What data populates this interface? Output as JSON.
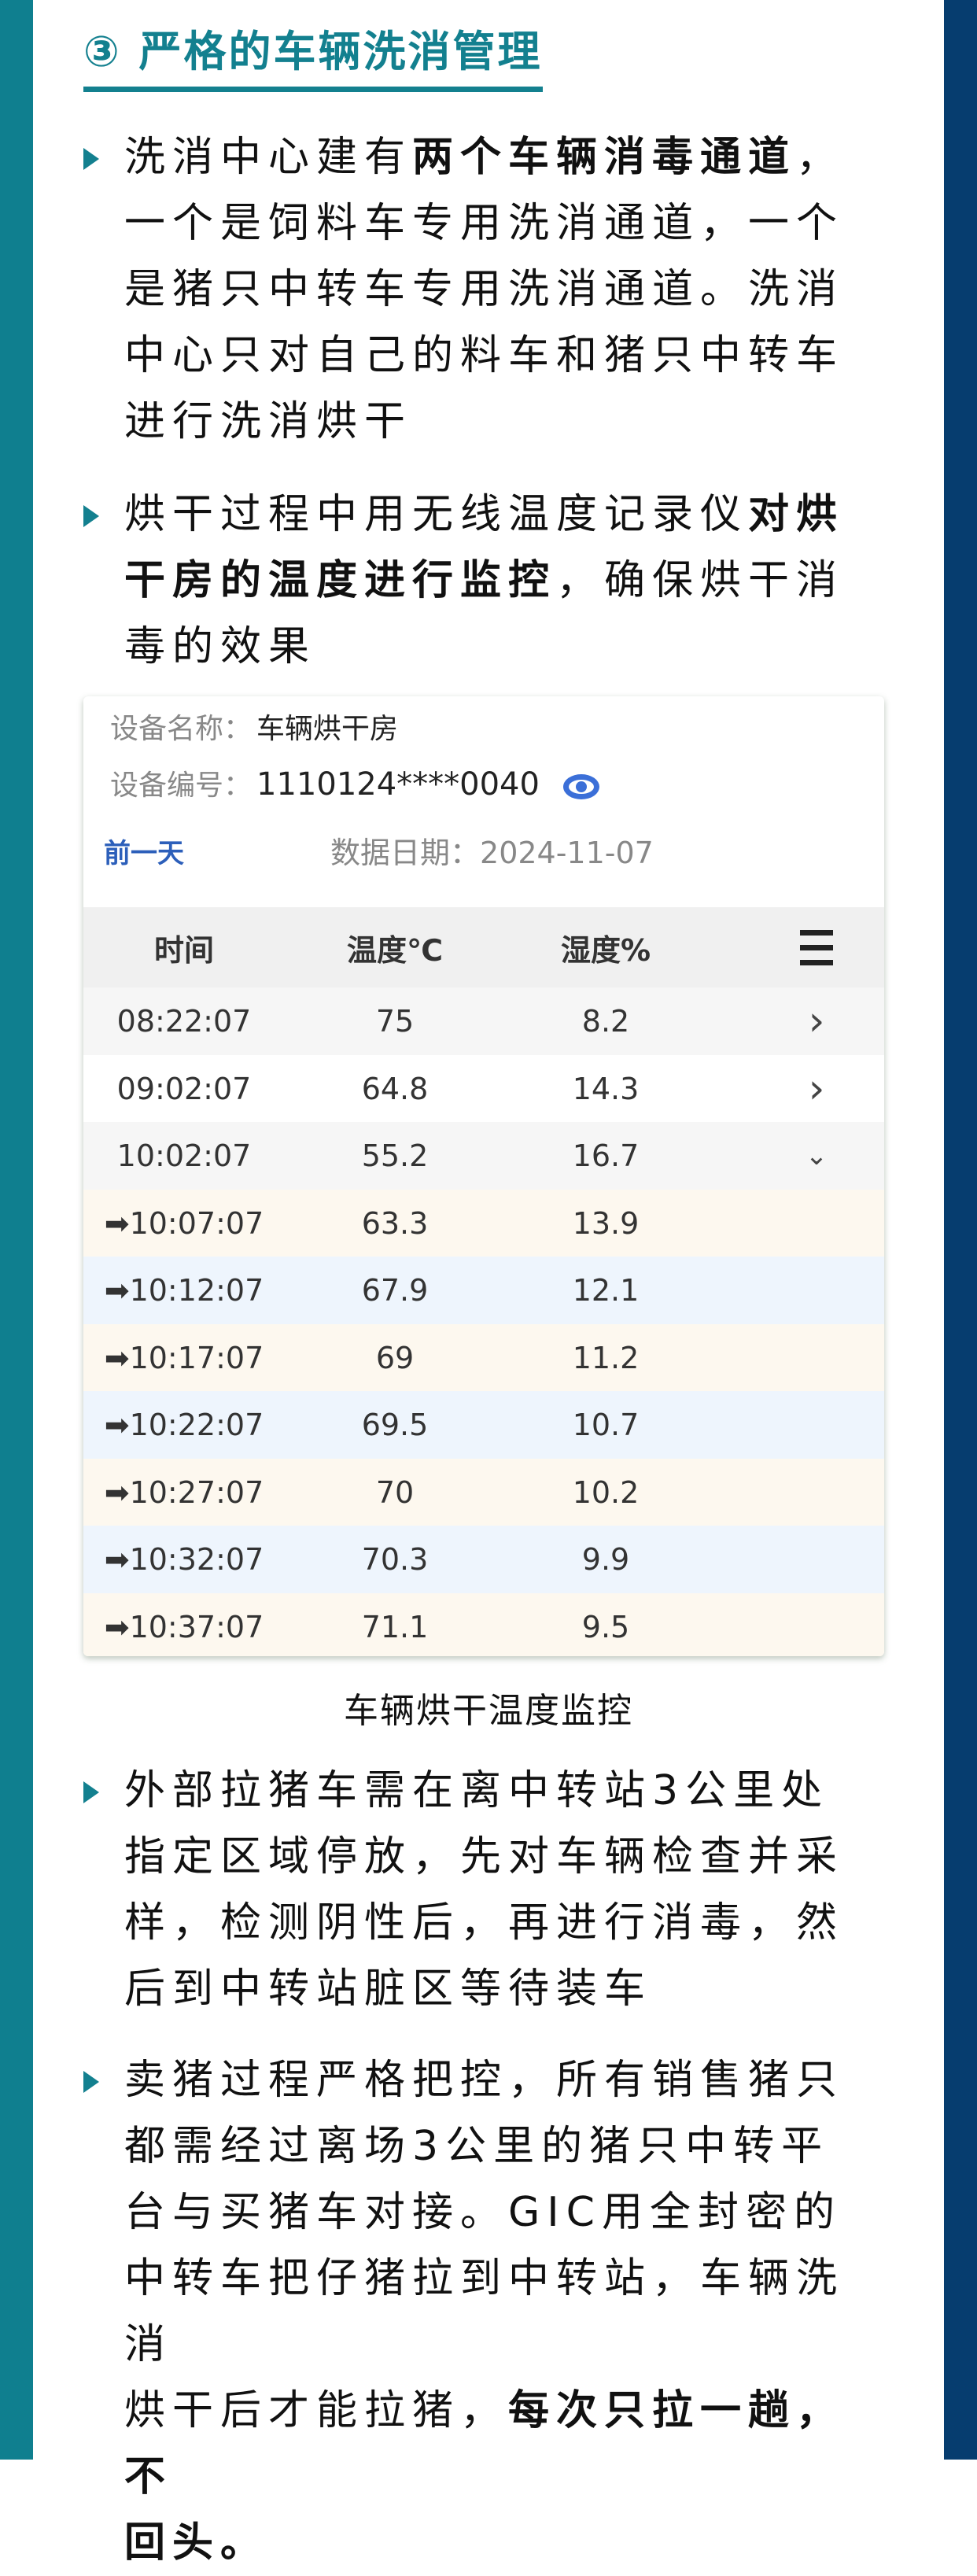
{
  "section_title": "③ 严格的车辆洗消管理",
  "colors": {
    "left_bar": "#0f7f8f",
    "right_bar": "#063d6f",
    "accent": "#13808f",
    "link": "#2c5fba"
  },
  "bullets_top": [
    [
      [
        {
          "t": "洗消中心建有"
        },
        {
          "t": "两个车辆消毒通道",
          "b": true
        },
        {
          "t": "，"
        }
      ],
      [
        {
          "t": "一个是饲料车专用洗消通道，一个"
        }
      ],
      [
        {
          "t": "是猪只中转车专用洗消通道。洗消"
        }
      ],
      [
        {
          "t": "中心只对自己的料车和猪只中转车"
        }
      ],
      [
        {
          "t": "进行洗消烘干"
        }
      ]
    ],
    [
      [
        {
          "t": "烘干过程中用无线温度记录仪"
        },
        {
          "t": "对烘",
          "b": true
        }
      ],
      [
        {
          "t": "干房的温度进行监控",
          "b": true
        },
        {
          "t": "，确保烘干消"
        }
      ],
      [
        {
          "t": "毒的效果"
        }
      ]
    ]
  ],
  "device": {
    "name_label": "设备名称：",
    "name": "车辆烘干房",
    "id_label": "设备编号：",
    "id": "1110124****0040",
    "id_icon": "eye-icon",
    "prev_day": "前一天",
    "date_label": "数据日期：",
    "date": "2024-11-07"
  },
  "table": {
    "headers": [
      "时间",
      "温度℃",
      "湿度%"
    ],
    "header_icon": "list-menu-icon",
    "rows": [
      {
        "time": "08:22:07",
        "temp": "75",
        "hum": "8.2",
        "icon": "chevron-right",
        "bg": "#f6f6f6"
      },
      {
        "time": "09:02:07",
        "temp": "64.8",
        "hum": "14.3",
        "icon": "chevron-right",
        "bg": "#ffffff"
      },
      {
        "time": "10:02:07",
        "temp": "55.2",
        "hum": "16.7",
        "icon": "chevron-down",
        "bg": "#f6f6f6"
      },
      {
        "time": "➡10:07:07",
        "temp": "63.3",
        "hum": "13.9",
        "bg": "#fdf8ef"
      },
      {
        "time": "➡10:12:07",
        "temp": "67.9",
        "hum": "12.1",
        "bg": "#eef5fd"
      },
      {
        "time": "➡10:17:07",
        "temp": "69",
        "hum": "11.2",
        "bg": "#fdf8ef"
      },
      {
        "time": "➡10:22:07",
        "temp": "69.5",
        "hum": "10.7",
        "bg": "#eef5fd"
      },
      {
        "time": "➡10:27:07",
        "temp": "70",
        "hum": "10.2",
        "bg": "#fdf8ef"
      },
      {
        "time": "➡10:32:07",
        "temp": "70.3",
        "hum": "9.9",
        "bg": "#eef5fd"
      },
      {
        "time": "➡10:37:07",
        "temp": "71.1",
        "hum": "9.5",
        "bg": "#fdf8ef"
      }
    ]
  },
  "caption": "车辆烘干温度监控",
  "bullets_bottom": [
    [
      [
        {
          "t": "外部拉猪车需在离中转站3公里处"
        }
      ],
      [
        {
          "t": "指定区域停放，先对车辆检查并采"
        }
      ],
      [
        {
          "t": "样，检测阴性后，再进行消毒，然"
        }
      ],
      [
        {
          "t": "后到中转站脏区等待装车"
        }
      ]
    ],
    [
      [
        {
          "t": "卖猪过程严格把控，所有销售猪只"
        }
      ],
      [
        {
          "t": "都需经过离场3公里的猪只中转平"
        }
      ],
      [
        {
          "t": "台与买猪车对接。GIC用全封密的"
        }
      ],
      [
        {
          "t": "中转车把仔猪拉到中转站，车辆洗消"
        }
      ],
      [
        {
          "t": "烘干后才能拉猪，"
        },
        {
          "t": "每次只拉一趟，不",
          "b": true
        }
      ],
      [
        {
          "t": "回头。",
          "b": true
        }
      ]
    ]
  ]
}
